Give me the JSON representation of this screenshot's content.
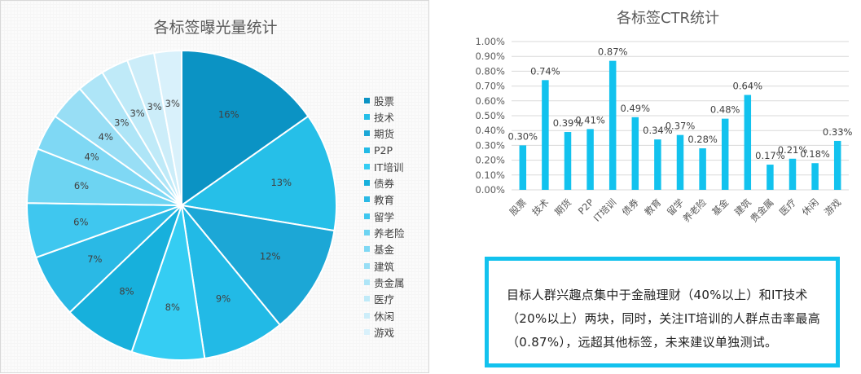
{
  "chart_data": [
    {
      "type": "pie",
      "title": "各标签曝光量统计",
      "categories": [
        "股票",
        "技术",
        "期货",
        "P2P",
        "IT培训",
        "债券",
        "教育",
        "留学",
        "养老险",
        "基金",
        "建筑",
        "贵金属",
        "医疗",
        "休闲",
        "游戏"
      ],
      "values": [
        16,
        13,
        12,
        9,
        8,
        8,
        7,
        6,
        6,
        4,
        4,
        3,
        3,
        3,
        3
      ],
      "labels": [
        "16%",
        "13%",
        "12%",
        "9%",
        "8%",
        "8%",
        "7%",
        "6%",
        "6%",
        "4%",
        "4%",
        "3%",
        "3%",
        "3%",
        "3%"
      ],
      "legend": "right"
    },
    {
      "type": "bar",
      "title": "各标签CTR统计",
      "categories": [
        "股票",
        "技术",
        "期货",
        "P2P",
        "IT培训",
        "债券",
        "教育",
        "留学",
        "养老险",
        "基金",
        "建筑",
        "贵金属",
        "医疗",
        "休闲",
        "游戏"
      ],
      "values": [
        0.3,
        0.74,
        0.39,
        0.41,
        0.87,
        0.49,
        0.34,
        0.37,
        0.28,
        0.48,
        0.64,
        0.17,
        0.21,
        0.18,
        0.33
      ],
      "labels": [
        "0.30%",
        "0.74%",
        "0.39%",
        "0.41%",
        "0.87%",
        "0.49%",
        "0.34%",
        "0.37%",
        "0.28%",
        "0.48%",
        "0.64%",
        "0.17%",
        "0.21%",
        "0.18%",
        "0.33%"
      ],
      "yticks": [
        "0.00%",
        "0.10%",
        "0.20%",
        "0.30%",
        "0.40%",
        "0.50%",
        "0.60%",
        "0.70%",
        "0.80%",
        "0.90%",
        "1.00%"
      ],
      "ylim": [
        0,
        1.0
      ],
      "grid": true
    }
  ],
  "note": {
    "text": "目标人群兴趣点集中于金融理财（40%以上）和IT技术（20%以上）两块，同时，关注IT培训的人群点击率最高（0.87%），远超其他标签，未来建议单独测试。"
  },
  "colors": {
    "bar": "#12c2ee",
    "note_border": "#12c2ee",
    "pie_palette": [
      "#0b93c4",
      "#26bfe8",
      "#1ca7d6",
      "#22bae6",
      "#35cdf3",
      "#17b0dc",
      "#2ab9e5",
      "#3fc7ef",
      "#6dd4f2",
      "#7fd8f4",
      "#98def5",
      "#aee5f7",
      "#bfeaf8",
      "#ccedf9",
      "#d9f1fb"
    ]
  }
}
